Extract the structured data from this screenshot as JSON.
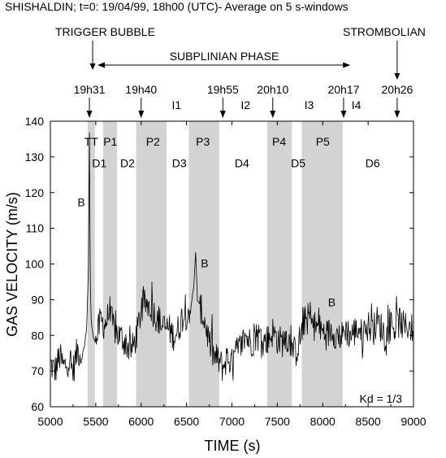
{
  "chart_data": {
    "type": "line",
    "title": "SHISHALDIN;  t=0: 19/04/99, 18h00 (UTC)- Average on 5 s-windows",
    "xlabel": "TIME (s)",
    "ylabel": "GAS VELOCITY (m/s)",
    "xlim": [
      5000,
      9000
    ],
    "ylim": [
      60,
      140
    ],
    "x_ticks": [
      "5000",
      "5500",
      "6000",
      "6500",
      "7000",
      "7500",
      "8000",
      "8500",
      "9000"
    ],
    "y_ticks": [
      "60",
      "70",
      "80",
      "90",
      "100",
      "110",
      "120",
      "130",
      "140"
    ],
    "grid": false,
    "events": [
      {
        "label": "TRIGGER BUBBLE"
      },
      {
        "label": "STROMBOLIAN",
        "x": 8820
      }
    ],
    "phase": {
      "label": "SUBPLINIAN PHASE",
      "x_start": 5430,
      "x_end": 8250
    },
    "time_markers": [
      {
        "label": "19h31",
        "x": 5430
      },
      {
        "label": "19h40",
        "x": 6000
      },
      {
        "label": "19h55",
        "x": 6900
      },
      {
        "label": "20h10",
        "x": 7450
      },
      {
        "label": "20h17",
        "x": 8230
      },
      {
        "label": "20h26",
        "x": 8820
      }
    ],
    "interval_labels": [
      {
        "label": "I1",
        "x": 6390
      },
      {
        "label": "I2",
        "x": 7150
      },
      {
        "label": "I3",
        "x": 7850
      },
      {
        "label": "I4",
        "x": 8370
      }
    ],
    "shaded_bands": [
      {
        "x_start": 5410,
        "x_end": 5490
      },
      {
        "x_start": 5580,
        "x_end": 5735
      },
      {
        "x_start": 5945,
        "x_end": 6280
      },
      {
        "x_start": 6525,
        "x_end": 6860
      },
      {
        "x_start": 7390,
        "x_end": 7660
      },
      {
        "x_start": 7770,
        "x_end": 8220
      }
    ],
    "region_labels": [
      {
        "label": "TT",
        "x": 5450,
        "y": 134.5
      },
      {
        "label": "P1",
        "x": 5660,
        "y": 134.5
      },
      {
        "label": "P2",
        "x": 6130,
        "y": 134.5
      },
      {
        "label": "P3",
        "x": 6680,
        "y": 134.5
      },
      {
        "label": "P4",
        "x": 7520,
        "y": 134.5
      },
      {
        "label": "P5",
        "x": 8000,
        "y": 134.5
      },
      {
        "label": "D1",
        "x": 5540,
        "y": 128.5
      },
      {
        "label": "D2",
        "x": 5850,
        "y": 128.5
      },
      {
        "label": "D3",
        "x": 6420,
        "y": 128.5
      },
      {
        "label": "D4",
        "x": 7110,
        "y": 128.5
      },
      {
        "label": "D5",
        "x": 7730,
        "y": 128.5
      },
      {
        "label": "D6",
        "x": 8550,
        "y": 128.5
      }
    ],
    "annotations": [
      {
        "label": "B",
        "x": 5340,
        "y": 117.5
      },
      {
        "label": "B",
        "x": 6700,
        "y": 100.5
      },
      {
        "label": "B",
        "x": 8100,
        "y": 89.5
      },
      {
        "label": "Kd = 1/3",
        "x": 8640,
        "y": 62.5
      }
    ],
    "series": [
      {
        "x": [
          5000,
          5050,
          5100,
          5150,
          5200,
          5250,
          5300,
          5350,
          5380,
          5400,
          5420,
          5430,
          5440,
          5450,
          5470,
          5500,
          5550,
          5600,
          5650,
          5700,
          5750,
          5800,
          5850,
          5900,
          5950,
          6000,
          6050,
          6100,
          6150,
          6200,
          6250,
          6300,
          6350,
          6400,
          6450,
          6500,
          6550,
          6580,
          6600,
          6620,
          6650,
          6700,
          6750,
          6800,
          6850,
          6900,
          6950,
          7000,
          7050,
          7100,
          7150,
          7200,
          7250,
          7300,
          7350,
          7400,
          7450,
          7500,
          7550,
          7600,
          7650,
          7700,
          7750,
          7800,
          7850,
          7900,
          7950,
          8000,
          8050,
          8100,
          8150,
          8200,
          8250,
          8300,
          8350,
          8400,
          8450,
          8500,
          8550,
          8600,
          8650,
          8700,
          8750,
          8800,
          8850,
          8900,
          8950,
          9000
        ],
        "values": [
          72,
          70,
          74,
          71,
          73,
          70,
          76,
          74,
          78,
          82,
          100,
          137,
          95,
          84,
          80,
          78,
          84,
          83,
          86,
          82,
          80,
          79,
          77,
          76,
          80,
          87,
          89,
          88,
          86,
          84,
          82,
          82,
          80,
          81,
          85,
          86,
          88,
          94,
          103,
          90,
          88,
          84,
          78,
          74,
          73,
          71,
          74,
          72,
          75,
          77,
          80,
          78,
          79,
          80,
          78,
          79,
          81,
          79,
          78,
          80,
          77,
          75,
          79,
          84,
          85,
          83,
          82,
          81,
          80,
          82,
          80,
          79,
          82,
          80,
          81,
          82,
          79,
          83,
          81,
          84,
          82,
          80,
          83,
          82,
          84,
          82,
          83,
          81
        ]
      }
    ]
  }
}
